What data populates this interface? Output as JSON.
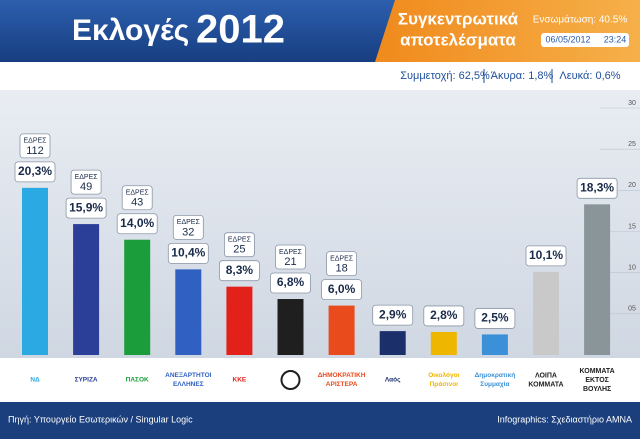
{
  "header": {
    "title": "Εκλογές",
    "year": "2012",
    "subtitle_1": "Συγκεντρωτικά",
    "subtitle_2": "αποτελέσματα",
    "progress": "Ενσωμάτωση: 40.5%",
    "date": "06/05/2012",
    "time": "23:24",
    "stats": [
      "Συμμετοχή: 62,5%",
      "Άκυρα: 1,8%",
      "Λευκά: 0,6%"
    ]
  },
  "footer": {
    "source": "Πηγή: Υπουργείο Εσωτερικών / Singular Logic",
    "credit": "Infographics: Σχεδιαστήριο ΑΜΝΑ"
  },
  "chart_data": {
    "type": "bar",
    "categories": [
      "ΝΔ",
      "ΣΥΡΙΖΑ",
      "ΠΑΣΟΚ",
      "ΑΝΕΞΑΡΤΗΤΟΙ ΕΛΛΗΝΕΣ",
      "ΚΚΕ",
      null,
      "ΔΗΜΟΚΡΑΤΙΚΗ ΑΡΙΣΤΕΡΑ",
      "Λαός",
      "Οικολόγοι Πράσινοι",
      "Δημοκρατική Συμμαχία",
      "ΛΟΙΠΑ ΚΟΜΜΑΤΑ",
      "ΚΟΜΜΑΤΑ ΕΚΤΟΣ ΒΟΥΛΗΣ"
    ],
    "values": [
      20.3,
      15.9,
      14.0,
      10.4,
      8.3,
      6.8,
      6.0,
      2.9,
      2.8,
      2.5,
      10.1,
      18.3
    ],
    "value_labels": [
      "20,3%",
      "15,9%",
      "14,0%",
      "10,4%",
      "8,3%",
      "6,8%",
      "6,0%",
      "2,9%",
      "2,8%",
      "2,5%",
      "10,1%",
      "18,3%"
    ],
    "colors": [
      "#2aa9e2",
      "#2b3f98",
      "#1b9d3b",
      "#2f60c2",
      "#e2211b",
      "#1f1f1f",
      "#e94b1d",
      "#1b2f6b",
      "#efb600",
      "#3b90d8",
      "#c9c9c9",
      "#8a959a"
    ],
    "seats_label": "ΕΔΡΕΣ",
    "seats": [
      112,
      49,
      43,
      32,
      25,
      21,
      18,
      null,
      null,
      null,
      null,
      null
    ],
    "ylim": [
      0,
      30
    ],
    "yticks": [
      {
        "value": 5,
        "label": "05"
      },
      10,
      15,
      20,
      25,
      30
    ]
  }
}
